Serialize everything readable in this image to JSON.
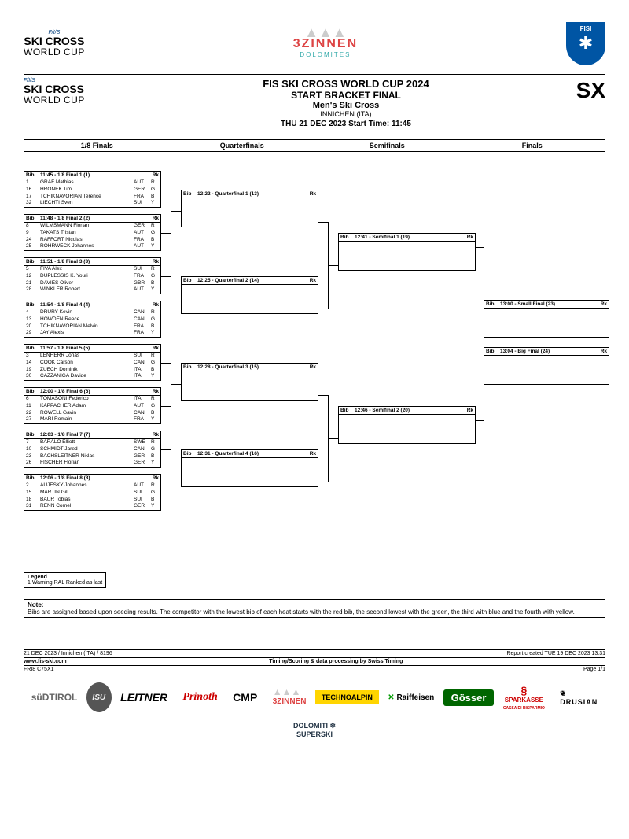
{
  "logos": {
    "fis": "F/I/S",
    "skicross": "SKI CROSS",
    "worldcup": "WORLD CUP",
    "zinnen_main": "3ZINNEN",
    "zinnen_sub": "DOLOMITES",
    "fisi": "FISI"
  },
  "header": {
    "title1": "FIS SKI CROSS WORLD CUP 2024",
    "title2": "START BRACKET FINAL",
    "title3": "Men's Ski Cross",
    "location": "INNICHEN (ITA)",
    "date_line": "THU 21 DEC 2023    Start Time: 11:45",
    "code": "SX"
  },
  "rounds": [
    "1/8 Finals",
    "Quarterfinals",
    "Semifinals",
    "Finals"
  ],
  "col_bib": "Bib",
  "col_rk": "Rk",
  "heats_18": [
    {
      "title": "11:45 - 1/8 Final 1 (1)",
      "rows": [
        {
          "bib": "1",
          "name": "GRAF Mathias",
          "nat": "AUT",
          "c": "R"
        },
        {
          "bib": "16",
          "name": "HRONEK Tim",
          "nat": "GER",
          "c": "G"
        },
        {
          "bib": "17",
          "name": "TCHIKNAVORIAN Terence",
          "nat": "FRA",
          "c": "B"
        },
        {
          "bib": "32",
          "name": "LIECHTI Sven",
          "nat": "SUI",
          "c": "Y"
        }
      ]
    },
    {
      "title": "11:48 - 1/8 Final 2 (2)",
      "rows": [
        {
          "bib": "8",
          "name": "WILMSMANN Florian",
          "nat": "GER",
          "c": "R"
        },
        {
          "bib": "9",
          "name": "TAKATS Tristan",
          "nat": "AUT",
          "c": "G"
        },
        {
          "bib": "24",
          "name": "RAFFORT Nicolas",
          "nat": "FRA",
          "c": "B"
        },
        {
          "bib": "25",
          "name": "ROHRWECK Johannes",
          "nat": "AUT",
          "c": "Y"
        }
      ]
    },
    {
      "title": "11:51 - 1/8 Final 3 (3)",
      "rows": [
        {
          "bib": "5",
          "name": "FIVA Alex",
          "nat": "SUI",
          "c": "R"
        },
        {
          "bib": "12",
          "name": "DUPLESSIS K. Youri",
          "nat": "FRA",
          "c": "G"
        },
        {
          "bib": "21",
          "name": "DAVIES Oliver",
          "nat": "GBR",
          "c": "B"
        },
        {
          "bib": "28",
          "name": "WINKLER Robert",
          "nat": "AUT",
          "c": "Y"
        }
      ]
    },
    {
      "title": "11:54 - 1/8 Final 4 (4)",
      "rows": [
        {
          "bib": "4",
          "name": "DRURY Kevin",
          "nat": "CAN",
          "c": "R"
        },
        {
          "bib": "13",
          "name": "HOWDEN Reece",
          "nat": "CAN",
          "c": "G"
        },
        {
          "bib": "20",
          "name": "TCHIKNAVORIAN Melvin",
          "nat": "FRA",
          "c": "B"
        },
        {
          "bib": "29",
          "name": "JAY Alexis",
          "nat": "FRA",
          "c": "Y"
        }
      ]
    },
    {
      "title": "11:57 - 1/8 Final 5 (5)",
      "rows": [
        {
          "bib": "3",
          "name": "LENHERR Jonas",
          "nat": "SUI",
          "c": "R"
        },
        {
          "bib": "14",
          "name": "COOK Carson",
          "nat": "CAN",
          "c": "G"
        },
        {
          "bib": "19",
          "name": "ZUECH Dominik",
          "nat": "ITA",
          "c": "B"
        },
        {
          "bib": "30",
          "name": "CAZZANIGA Davide",
          "nat": "ITA",
          "c": "Y"
        }
      ]
    },
    {
      "title": "12:00 - 1/8 Final 6 (6)",
      "rows": [
        {
          "bib": "6",
          "name": "TOMASONI Federico",
          "nat": "ITA",
          "c": "R"
        },
        {
          "bib": "11",
          "name": "KAPPACHER Adam",
          "nat": "AUT",
          "c": "G"
        },
        {
          "bib": "22",
          "name": "ROWELL Gavin",
          "nat": "CAN",
          "c": "B"
        },
        {
          "bib": "27",
          "name": "MARI Romain",
          "nat": "FRA",
          "c": "Y"
        }
      ]
    },
    {
      "title": "12:03 - 1/8 Final 7 (7)",
      "rows": [
        {
          "bib": "7",
          "name": "BARALO Elliott",
          "nat": "SWE",
          "c": "R"
        },
        {
          "bib": "10",
          "name": "SCHMIDT Jared",
          "nat": "CAN",
          "c": "G"
        },
        {
          "bib": "23",
          "name": "BACHSLEITNER Niklas",
          "nat": "GER",
          "c": "B"
        },
        {
          "bib": "26",
          "name": "FISCHER Florian",
          "nat": "GER",
          "c": "Y"
        }
      ]
    },
    {
      "title": "12:06 - 1/8 Final 8 (8)",
      "rows": [
        {
          "bib": "2",
          "name": "AUJESKY Johannes",
          "nat": "AUT",
          "c": "R"
        },
        {
          "bib": "15",
          "name": "MARTIN Gil",
          "nat": "SUI",
          "c": "G"
        },
        {
          "bib": "18",
          "name": "BAUR Tobias",
          "nat": "SUI",
          "c": "B"
        },
        {
          "bib": "31",
          "name": "RENN Cornel",
          "nat": "GER",
          "c": "Y"
        }
      ]
    }
  ],
  "heats_qf": [
    {
      "title": "12:22 - Quarterfinal 1 (13)"
    },
    {
      "title": "12:25 - Quarterfinal 2 (14)"
    },
    {
      "title": "12:28 - Quarterfinal 3 (15)"
    },
    {
      "title": "12:31 - Quarterfinal 4 (16)"
    }
  ],
  "heats_sf": [
    {
      "title": "12:41 - Semifinal 1 (19)"
    },
    {
      "title": "12:46 - Semifinal 2 (20)"
    }
  ],
  "heats_f": [
    {
      "title": "13:00 - Small Final (23)"
    },
    {
      "title": "13:04 - Big Final (24)"
    }
  ],
  "legend": {
    "hdr": "Legend",
    "line1": "1 Warning RAL Ranked as last"
  },
  "note": {
    "hdr": "Note:",
    "text": "Bibs are assigned based upon seeding results. The competitor with the lowest bib of each heat starts with the red bib, the second lowest with the green, the third with blue and the fourth with yellow."
  },
  "footer": {
    "left1": "21 DEC 2023 / Innichen (ITA) / 8196",
    "right1": "Report created TUE 19 DEC 2023 13:31",
    "left2": "www.fis-ski.com",
    "center2": "Timing/Scoring & data processing by Swiss Timing",
    "left3": "FRI8 C75X1",
    "right3": "Page 1/1"
  },
  "sponsors": {
    "sudtirol": "süDTIROL",
    "isu": "ISU",
    "leitner": "LEITNER",
    "prinoth": "Prinoth",
    "cmp": "CMP",
    "zinnen": "3ZINNEN",
    "technoalpin": "TECHNOALPIN",
    "raiffeisen": "Raiffeisen",
    "gosser": "Gösser",
    "sparkasse": "SPARKASSE",
    "sparkasse2": "CASSA DI RISPARMIO",
    "drusian": "DRUSIAN",
    "dolomiti": "DOLOMITI",
    "superski": "SUPERSKI"
  }
}
